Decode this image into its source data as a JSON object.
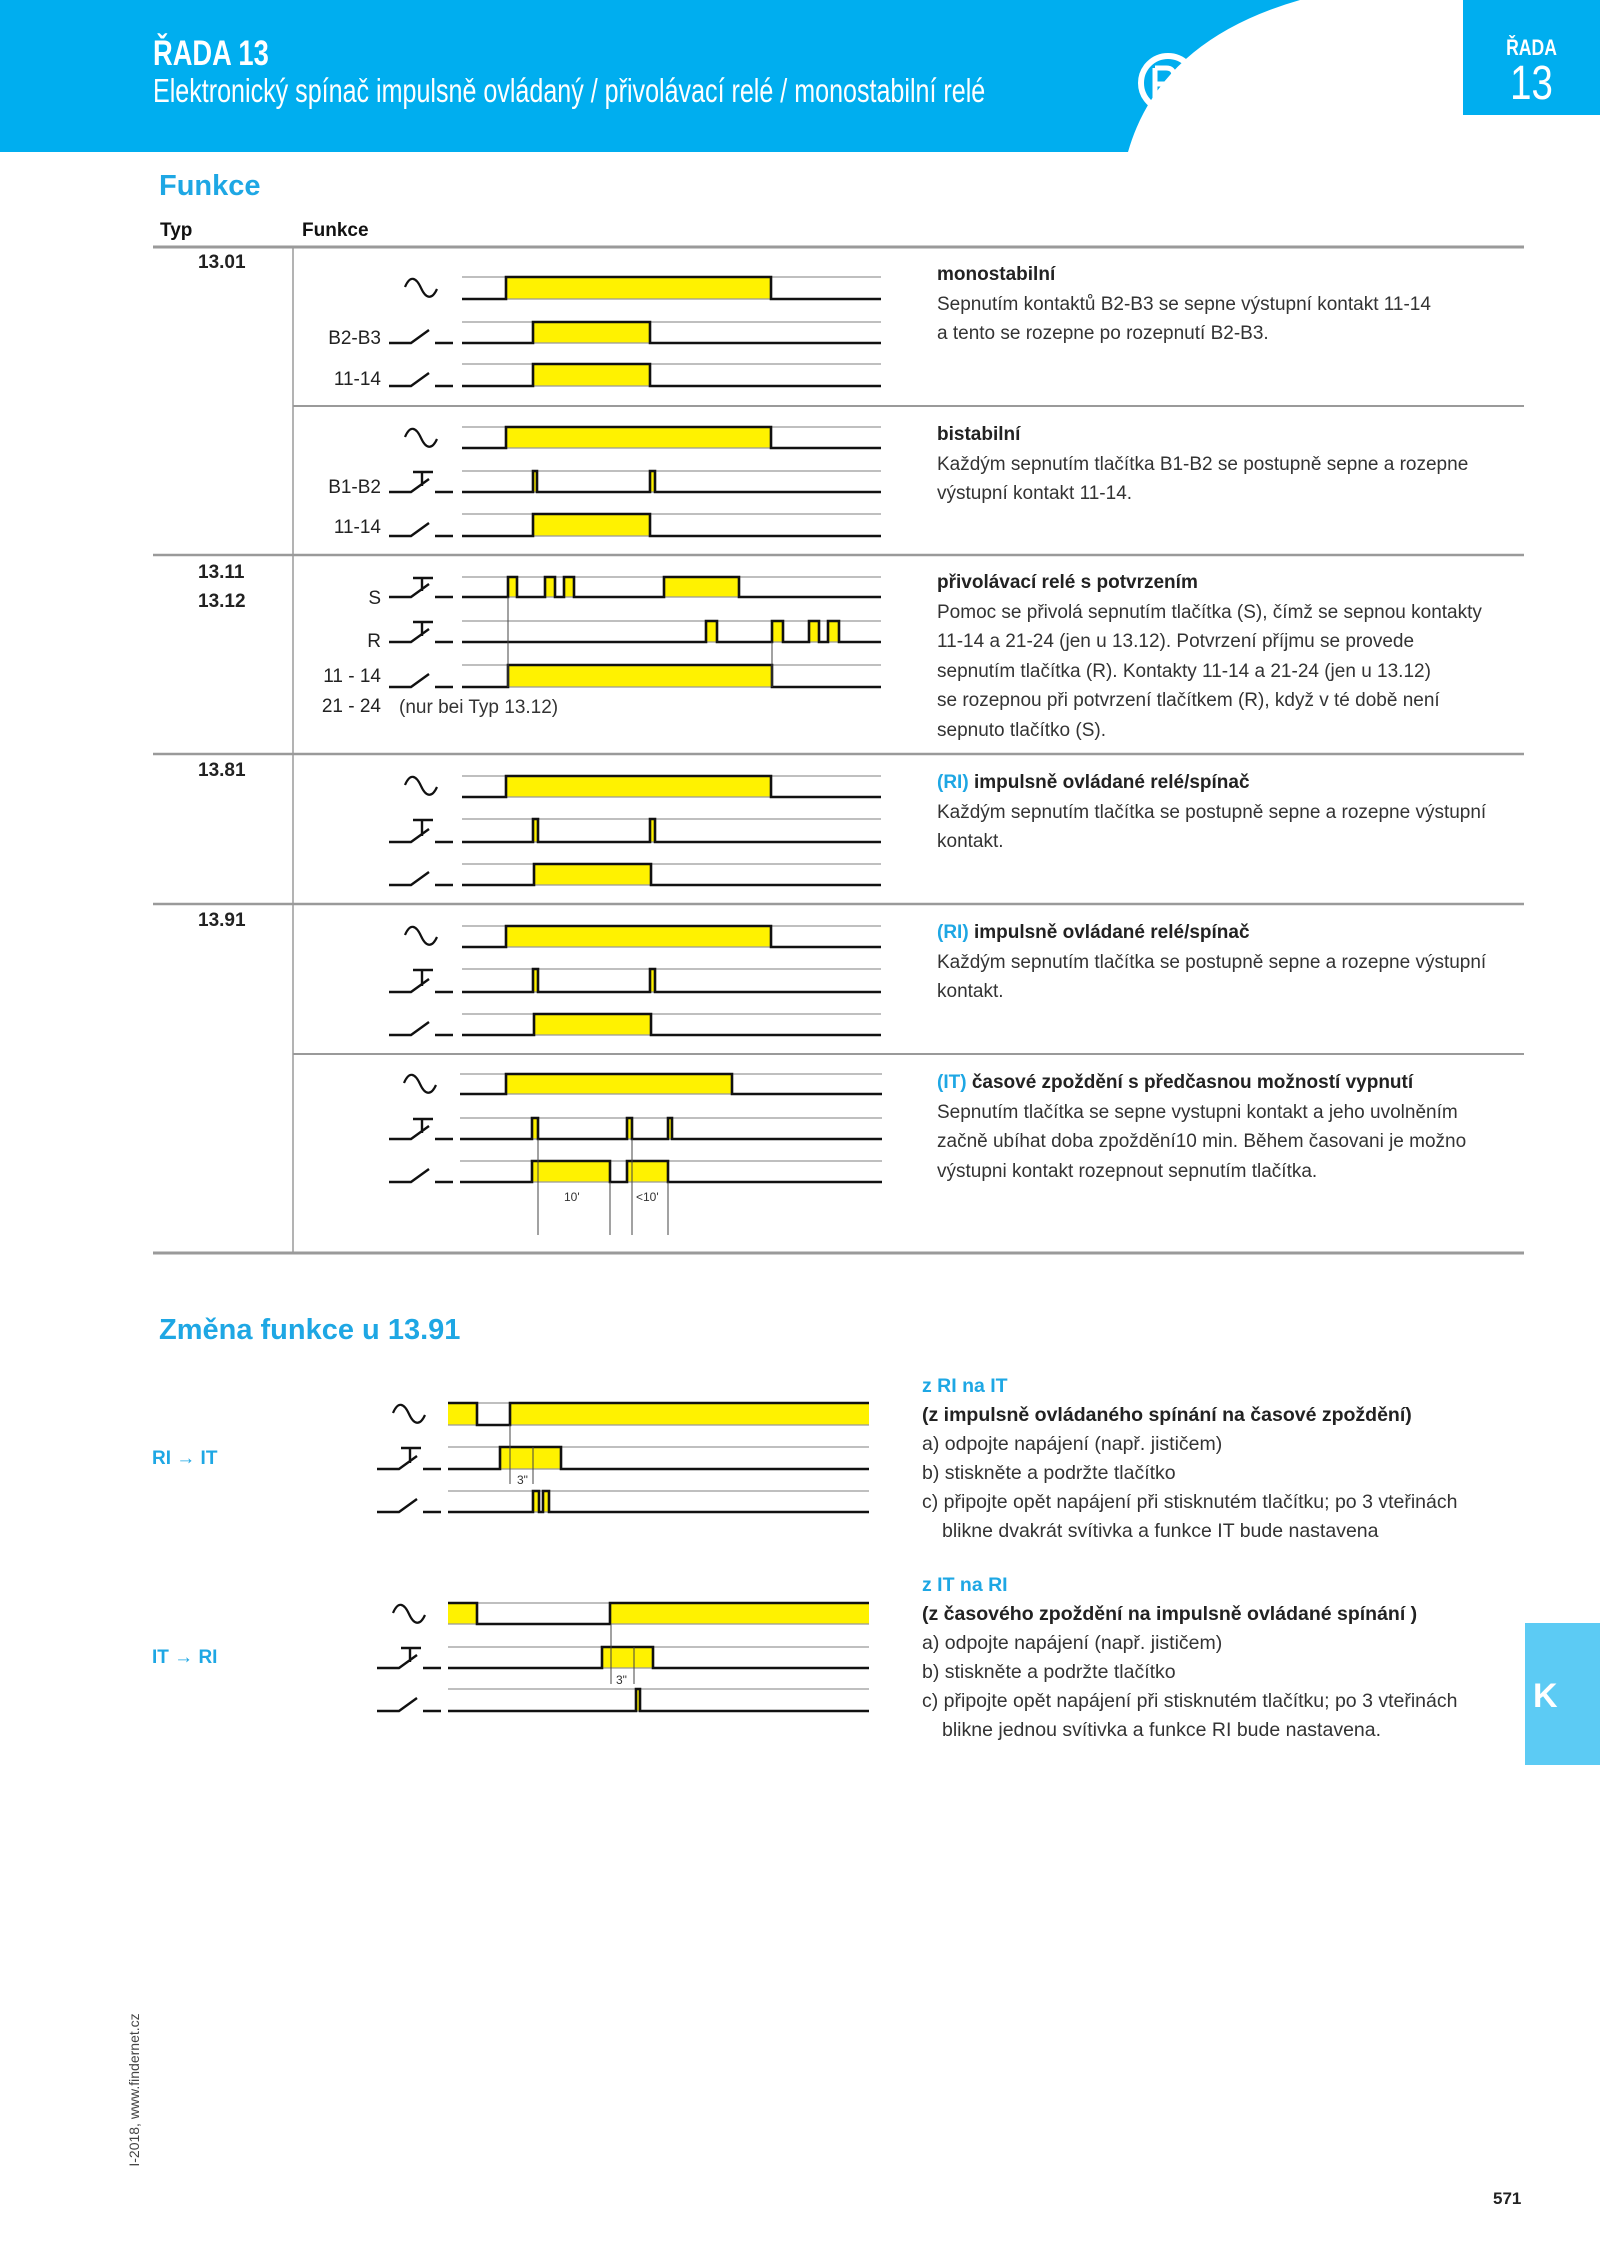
{
  "header": {
    "series_title": "ŘADA 13",
    "subtitle": "Elektronický spínač impulsně ovládaný / přivolávací relé / monostabilní relé",
    "brand": "finder",
    "badge_label": "ŘADA",
    "badge_number": "13"
  },
  "colors": {
    "brand_blue": "#00aeef",
    "accent_blue": "#1ea7e4",
    "signal_yellow": "#fff200",
    "tab_blue": "#5ccbf4"
  },
  "functions": {
    "heading": "Funkce",
    "col_type": "Typ",
    "col_function": "Funkce",
    "rows": [
      {
        "type": "13.01",
        "labels": [
          "B2-B3",
          "11-14"
        ],
        "symbols": [
          "sine-icon",
          "contact-icon",
          "contact-icon"
        ],
        "title": "monostabilní",
        "lines": [
          "Sepnutím kontaktů B2-B3 se sepne výstupní kontakt 11-14",
          "a tento se rozepne po rozepnutí B2-B3."
        ]
      },
      {
        "type": "",
        "labels": [
          "B1-B2",
          "11-14"
        ],
        "symbols": [
          "sine-icon",
          "pushbutton-icon",
          "contact-icon"
        ],
        "title": "bistabilní",
        "lines": [
          "Každým sepnutím tlačítka B1-B2 se postupně sepne a rozepne",
          "výstupní kontakt 11-14."
        ]
      },
      {
        "type": "13.11",
        "type2": "13.12",
        "labels": [
          "S",
          "R",
          "11 - 14",
          "21 - 24"
        ],
        "note": "(nur bei Typ 13.12)",
        "symbols": [
          "pushbutton-icon",
          "pushbutton-icon",
          "contact-icon"
        ],
        "title": "přivolávací relé s potvrzením",
        "lines": [
          "Pomoc se přivolá sepnutím tlačítka (S), čímž se sepnou kontakty",
          "11-14 a 21-24 (jen u 13.12). Potvrzení příjmu se provede",
          "sepnutím tlačítka (R). Kontakty 11-14 a 21-24 (jen u 13.12)",
          "se rozepnou při potvrzení tlačítkem (R), když v té době není",
          "sepnuto tlačítko (S)."
        ]
      },
      {
        "type": "13.81",
        "symbols": [
          "sine-icon",
          "pushbutton-icon",
          "contact-icon"
        ],
        "code": "(RI)",
        "title": "impulsně ovládané relé/spínač",
        "lines": [
          "Každým sepnutím tlačítka se postupně sepne a rozepne výstupní",
          "kontakt."
        ]
      },
      {
        "type": "13.91",
        "symbols": [
          "sine-icon",
          "pushbutton-icon",
          "contact-icon"
        ],
        "code": "(RI)",
        "title": "impulsně ovládané relé/spínač",
        "lines": [
          "Každým sepnutím tlačítka se postupně sepne a rozepne výstupní",
          "kontakt."
        ]
      },
      {
        "type": "",
        "symbols": [
          "sine-icon",
          "pushbutton-icon",
          "contact-icon"
        ],
        "code": "(IT)",
        "title": "časové zpoždění s předčasnou možností vypnutí",
        "timing": [
          "10'",
          "<10'"
        ],
        "lines": [
          "Sepnutím tlačítka se sepne vystupni kontakt a jeho uvolněním",
          "začně ubíhat doba zpoždění10 min. Během časovani je možno",
          "výstupni kontakt rozepnout sepnutím tlačítka."
        ]
      }
    ]
  },
  "change": {
    "heading": "Změna funkce u 13.91",
    "blocks": [
      {
        "side_label": "RI → IT",
        "timing": "3\"",
        "title": "z RI na IT",
        "subtitle": "(z impulsně ovládaného spínání na časové zpoždění)",
        "steps": [
          "a) odpojte napájení (např. jističem)",
          "b) stiskněte a podržte tlačítko",
          "c) připojte opět napájení při stisknutém tlačítku; po 3 vteřinách",
          "blikne dvakrát svítivka a funkce IT bude nastavena"
        ]
      },
      {
        "side_label": "IT → RI",
        "timing": "3\"",
        "title": "z IT na RI",
        "subtitle": "(z časového zpoždění na impulsně ovládané spínání )",
        "steps": [
          "a) odpojte napájení (např. jističem)",
          "b) stiskněte a podržte tlačítko",
          "c) připojte opět napájení při stisknutém tlačítku; po 3 vteřinách",
          "blikne jednou svítivka a funkce RI bude nastavena."
        ]
      }
    ]
  },
  "footer": {
    "edition": "I-2018, www.findernet.cz",
    "page": "571",
    "tab": "K"
  }
}
